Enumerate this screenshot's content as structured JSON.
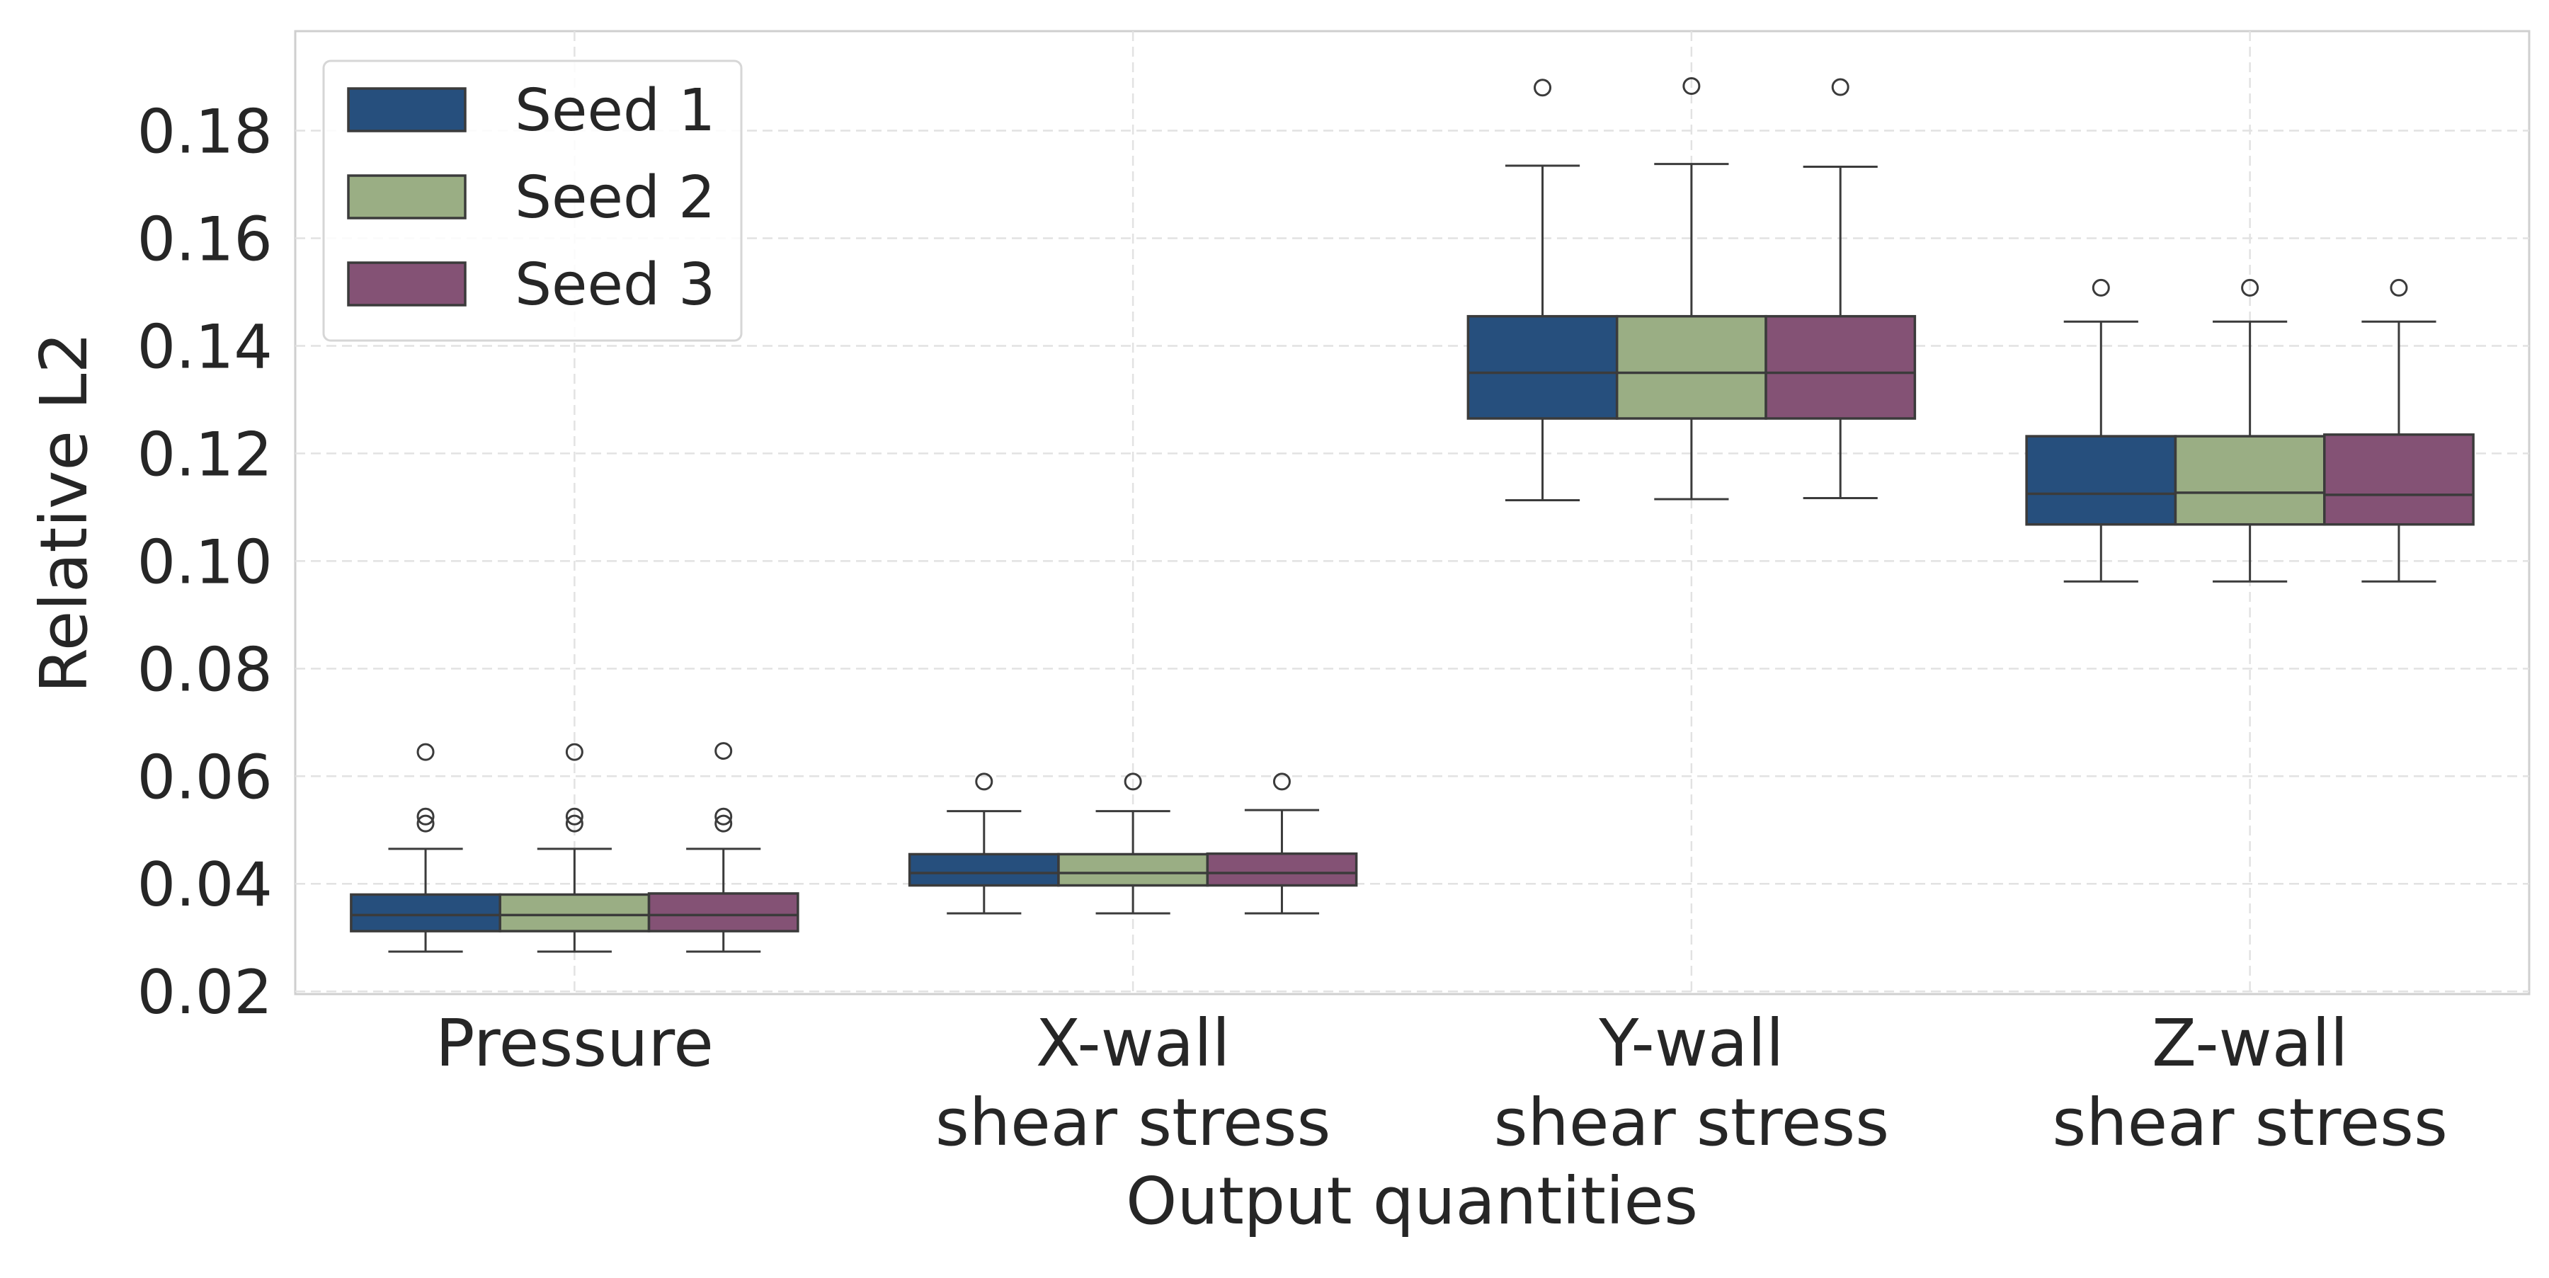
{
  "chart_data": {
    "type": "box",
    "title": "",
    "xlabel": "Output quantities",
    "ylabel": "Relative L2",
    "ylim": [
      0.0195,
      0.1985
    ],
    "yticks": [
      0.02,
      0.04,
      0.06,
      0.08,
      0.1,
      0.12,
      0.14,
      0.16,
      0.18
    ],
    "ytick_labels": [
      "0.02",
      "0.04",
      "0.06",
      "0.08",
      "0.10",
      "0.12",
      "0.14",
      "0.16",
      "0.18"
    ],
    "grid": true,
    "legend_position": "top-left",
    "categories": [
      {
        "line1": "Pressure",
        "line2": ""
      },
      {
        "line1": "X-wall",
        "line2": "shear stress"
      },
      {
        "line1": "Y-wall",
        "line2": "shear stress"
      },
      {
        "line1": "Z-wall",
        "line2": "shear stress"
      }
    ],
    "series": [
      {
        "name": "Seed 1",
        "color": "#264f7d",
        "boxes": [
          {
            "whislo": 0.0274,
            "q1": 0.0312,
            "med": 0.0342,
            "q3": 0.038,
            "whishi": 0.0465,
            "fliers": [
              0.0512,
              0.0525,
              0.0645
            ]
          },
          {
            "whislo": 0.0345,
            "q1": 0.0397,
            "med": 0.042,
            "q3": 0.0455,
            "whishi": 0.0535,
            "fliers": [
              0.059
            ]
          },
          {
            "whislo": 0.1113,
            "q1": 0.1265,
            "med": 0.135,
            "q3": 0.1455,
            "whishi": 0.1735,
            "fliers": [
              0.188
            ]
          },
          {
            "whislo": 0.0962,
            "q1": 0.1068,
            "med": 0.1125,
            "q3": 0.1232,
            "whishi": 0.1445,
            "fliers": [
              0.1508
            ]
          }
        ]
      },
      {
        "name": "Seed 2",
        "color": "#9aae84",
        "boxes": [
          {
            "whislo": 0.0274,
            "q1": 0.0312,
            "med": 0.0342,
            "q3": 0.038,
            "whishi": 0.0465,
            "fliers": [
              0.0512,
              0.0525,
              0.0645
            ]
          },
          {
            "whislo": 0.0345,
            "q1": 0.0397,
            "med": 0.042,
            "q3": 0.0455,
            "whishi": 0.0535,
            "fliers": [
              0.059
            ]
          },
          {
            "whislo": 0.1115,
            "q1": 0.1265,
            "med": 0.135,
            "q3": 0.1455,
            "whishi": 0.1738,
            "fliers": [
              0.1883
            ]
          },
          {
            "whislo": 0.0962,
            "q1": 0.1068,
            "med": 0.1127,
            "q3": 0.1232,
            "whishi": 0.1445,
            "fliers": [
              0.1508
            ]
          }
        ]
      },
      {
        "name": "Seed 3",
        "color": "#845275",
        "boxes": [
          {
            "whislo": 0.0274,
            "q1": 0.0312,
            "med": 0.0342,
            "q3": 0.0382,
            "whishi": 0.0465,
            "fliers": [
              0.0512,
              0.0525,
              0.0647
            ]
          },
          {
            "whislo": 0.0345,
            "q1": 0.0397,
            "med": 0.042,
            "q3": 0.0456,
            "whishi": 0.0537,
            "fliers": [
              0.059
            ]
          },
          {
            "whislo": 0.1117,
            "q1": 0.1265,
            "med": 0.135,
            "q3": 0.1455,
            "whishi": 0.1733,
            "fliers": [
              0.1881
            ]
          },
          {
            "whislo": 0.0962,
            "q1": 0.1068,
            "med": 0.1123,
            "q3": 0.1235,
            "whishi": 0.1445,
            "fliers": [
              0.1508
            ]
          }
        ]
      }
    ]
  }
}
